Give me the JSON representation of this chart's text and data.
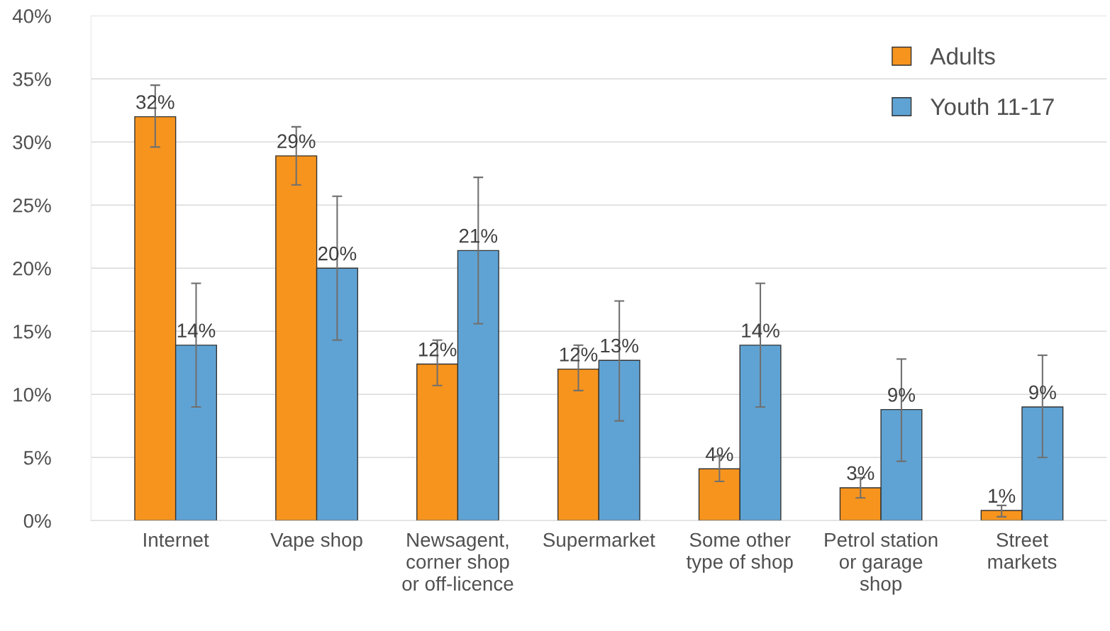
{
  "chart_data": {
    "type": "bar",
    "categories": [
      "Internet",
      "Vape shop",
      "Newsagent,\ncorner shop\nor off-licence",
      "Supermarket",
      "Some other\ntype of shop",
      "Petrol station\nor garage\nshop",
      "Street\nmarkets"
    ],
    "series": [
      {
        "name": "Adults",
        "color": "#f7941d",
        "values": [
          32.0,
          28.9,
          12.4,
          12.0,
          4.1,
          2.6,
          0.8
        ],
        "value_labels": [
          "32%",
          "29%",
          "12%",
          "12%",
          "4%",
          "3%",
          "1%"
        ],
        "errors": [
          [
            29.6,
            34.5
          ],
          [
            26.6,
            31.2
          ],
          [
            10.7,
            14.3
          ],
          [
            10.3,
            13.9
          ],
          [
            3.1,
            5.1
          ],
          [
            1.8,
            3.4
          ],
          [
            0.3,
            1.2
          ]
        ]
      },
      {
        "name": "Youth 11-17",
        "color": "#5fa3d4",
        "values": [
          13.9,
          20.0,
          21.4,
          12.7,
          13.9,
          8.8,
          9.0
        ],
        "value_labels": [
          "14%",
          "20%",
          "21%",
          "13%",
          "14%",
          "9%",
          "9%"
        ],
        "errors": [
          [
            9.0,
            18.8
          ],
          [
            14.3,
            25.7
          ],
          [
            15.6,
            27.2
          ],
          [
            7.9,
            17.4
          ],
          [
            9.0,
            18.8
          ],
          [
            4.7,
            12.8
          ],
          [
            5.0,
            13.1
          ]
        ]
      }
    ],
    "ylim": [
      0,
      40
    ],
    "yticks": [
      {
        "value": 0,
        "label": "0%"
      },
      {
        "value": 5,
        "label": "5%"
      },
      {
        "value": 10,
        "label": "10%"
      },
      {
        "value": 15,
        "label": "15%"
      },
      {
        "value": 20,
        "label": "20%"
      },
      {
        "value": 25,
        "label": "25%"
      },
      {
        "value": 30,
        "label": "30%"
      },
      {
        "value": 35,
        "label": "35%"
      },
      {
        "value": 40,
        "label": "40%"
      }
    ],
    "grid": "y",
    "legend": "top right"
  }
}
